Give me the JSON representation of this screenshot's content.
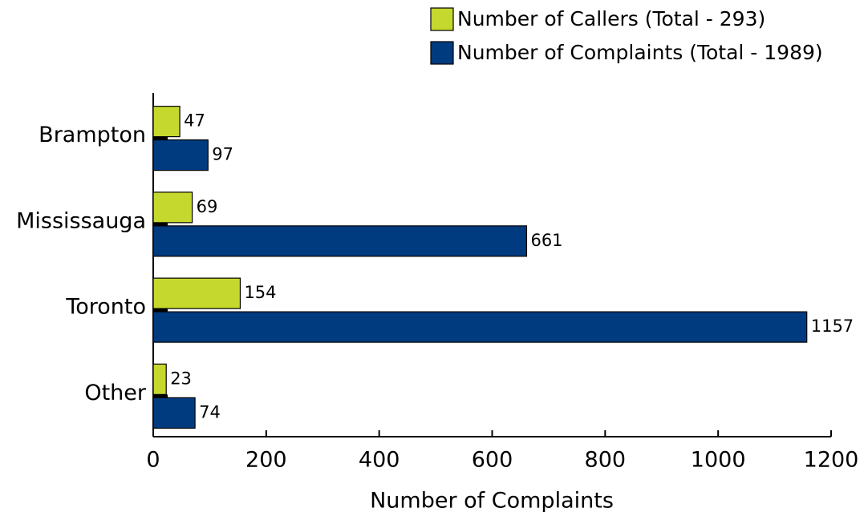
{
  "chart_data": {
    "type": "bar",
    "orientation": "horizontal",
    "xlabel": "Number of Complaints",
    "categories": [
      "Brampton",
      "Mississauga",
      "Toronto",
      "Other"
    ],
    "series": [
      {
        "name": "Number of Callers (Total - 293)",
        "color": "#c5d82e",
        "values": [
          47,
          69,
          154,
          23
        ]
      },
      {
        "name": "Number of Complaints (Total - 1989)",
        "color": "#003b7f",
        "values": [
          97,
          661,
          1157,
          74
        ]
      }
    ],
    "xlim": [
      0,
      1200
    ],
    "xticks": [
      0,
      200,
      400,
      600,
      800,
      1000,
      1200
    ],
    "legend": "upper right"
  }
}
